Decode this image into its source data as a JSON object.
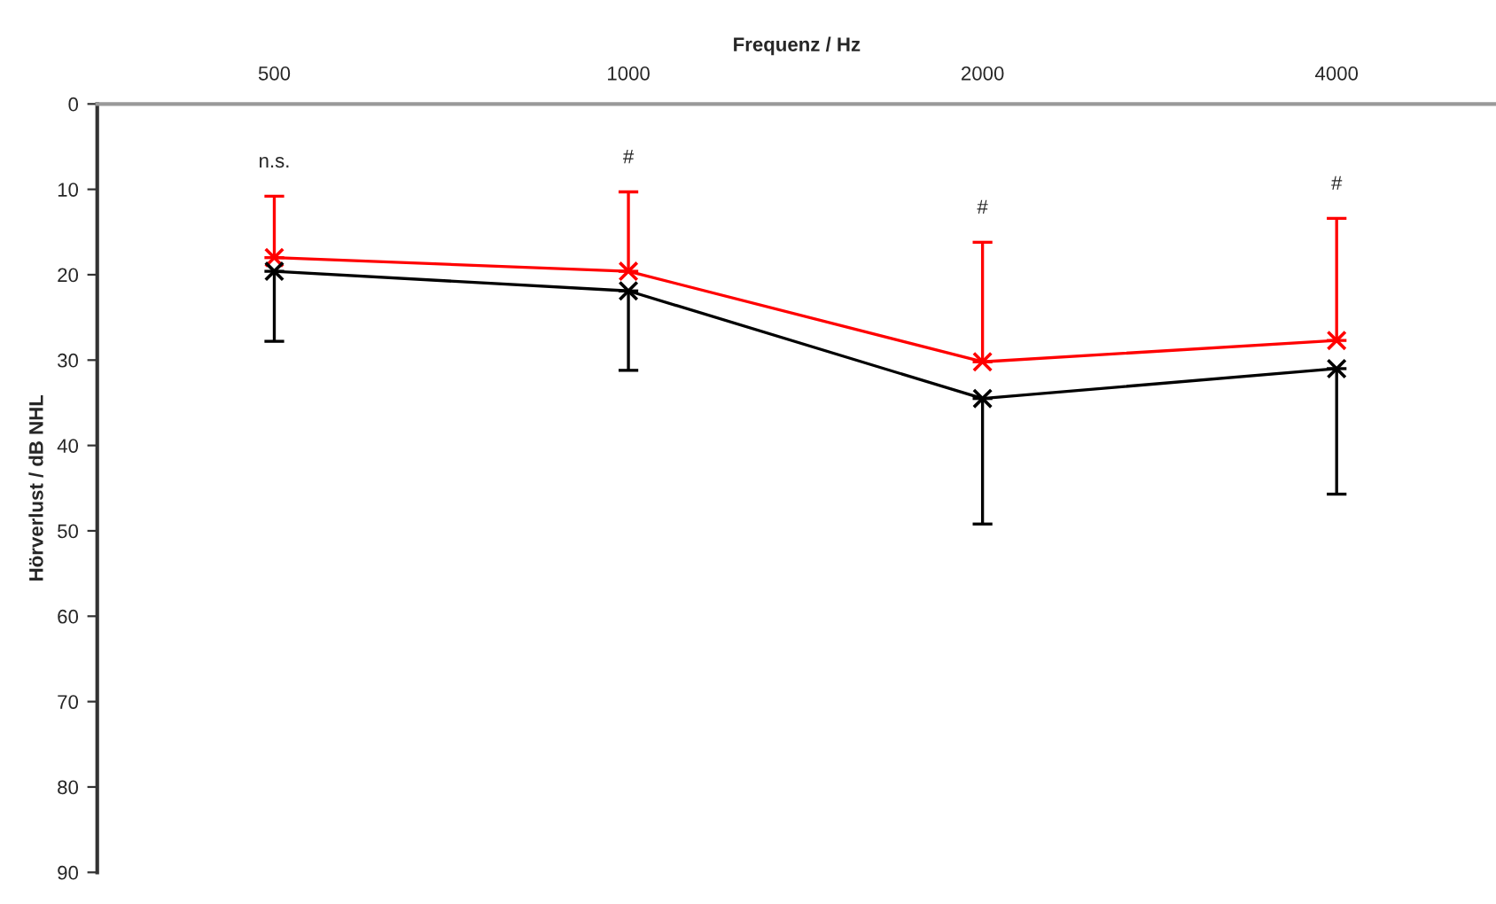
{
  "chart_data": {
    "type": "line",
    "xlabel": "Frequenz / Hz",
    "ylabel": "Hörverlust / dB NHL",
    "categories": [
      "500",
      "1000",
      "2000",
      "4000"
    ],
    "series": [
      {
        "color": "#ff0000",
        "values": [
          18.0,
          19.6,
          30.2,
          27.7
        ],
        "errors": [
          [
            10.8,
            18.0
          ],
          [
            10.3,
            19.6
          ],
          [
            16.2,
            30.2
          ],
          [
            13.4,
            27.7
          ]
        ]
      },
      {
        "color": "#000000",
        "values": [
          19.6,
          21.9,
          34.5,
          31.0
        ],
        "errors": [
          [
            19.6,
            27.8
          ],
          [
            21.9,
            31.2
          ],
          [
            34.5,
            49.2
          ],
          [
            31.0,
            45.7
          ]
        ]
      }
    ],
    "ylim": [
      90,
      0
    ],
    "yticks": [
      0,
      10,
      20,
      30,
      40,
      50,
      60,
      70,
      80,
      90
    ],
    "annotations": [
      "n.s.",
      "#",
      "#",
      "#"
    ],
    "marker": "cross",
    "line_style": "solid",
    "grid": false,
    "legend": false
  }
}
